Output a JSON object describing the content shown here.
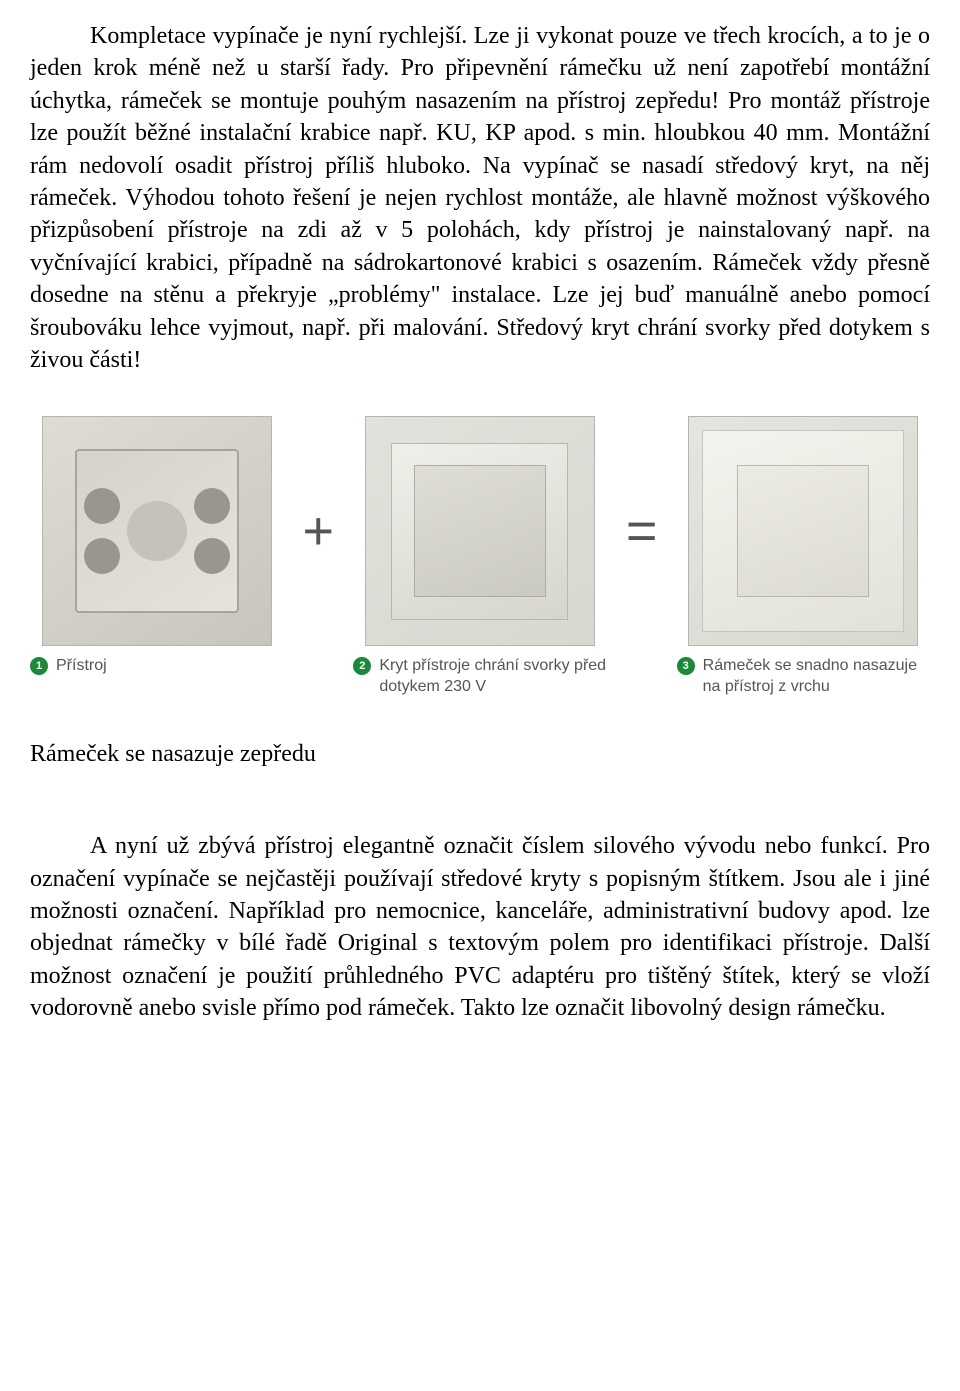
{
  "document": {
    "paragraph1": "Kompletace vypínače je nyní rychlejší. Lze ji vykonat pouze ve třech krocích, a to je o jeden krok méně než u starší řady. Pro připevnění rámečku už není zapotřebí montážní úchytka, rámeček se montuje pouhým nasazením na přístroj zepředu! Pro montáž přístroje lze použít běžné instalační krabice např. KU, KP apod. s min. hloubkou 40 mm. Montážní rám nedovolí osadit přístroj příliš hluboko. Na vypínač se nasadí středový kryt, na něj rámeček. Výhodou tohoto řešení je nejen rychlost montáže, ale hlavně možnost výškového přizpůsobení přístroje na zdi až v 5 polohách, kdy přístroj je nainstalovaný např. na vyčnívající krabici, případně na sádrokartonové krabici s osazením. Rámeček vždy přesně dosedne na stěnu a překryje „problémy\" instalace. Lze jej buď manuálně anebo pomocí šroubováku lehce vyjmout, např. při malování. Středový kryt chrání svorky před dotykem s živou části!",
    "subtitle": "Rámeček se nasazuje zepředu",
    "paragraph2": "A nyní už zbývá přístroj elegantně označit číslem silového vývodu nebo funkcí. Pro označení vypínače se nejčastěji používají středové kryty s popisným štítkem. Jsou ale i jiné možnosti označení. Například pro nemocnice, kanceláře, administrativní budovy apod. lze objednat rámečky v bílé řadě Original s textovým polem pro identifikaci přístroje. Další možnost označení je použití průhledného PVC adaptéru pro tištěný štítek, který se vloží vodorovně anebo svisle přímo pod rámeček. Takto lze označit libovolný design rámečku."
  },
  "figure": {
    "operator_plus": "+",
    "operator_equals": "=",
    "captions": [
      {
        "num": "1",
        "text": "Přístroj"
      },
      {
        "num": "2",
        "text": "Kryt přístroje chrání svorky před dotykem 230 V"
      },
      {
        "num": "3",
        "text": "Rámeček se snadno nasazuje na přístroj z vrchu"
      }
    ],
    "badge_bg": "#1a8a3a",
    "badge_fg": "#ffffff",
    "caption_color": "#555555",
    "caption_fontsize": 16
  },
  "style": {
    "body_fontsize": 24,
    "body_font": "Times New Roman",
    "text_color": "#000000",
    "background": "#ffffff"
  }
}
